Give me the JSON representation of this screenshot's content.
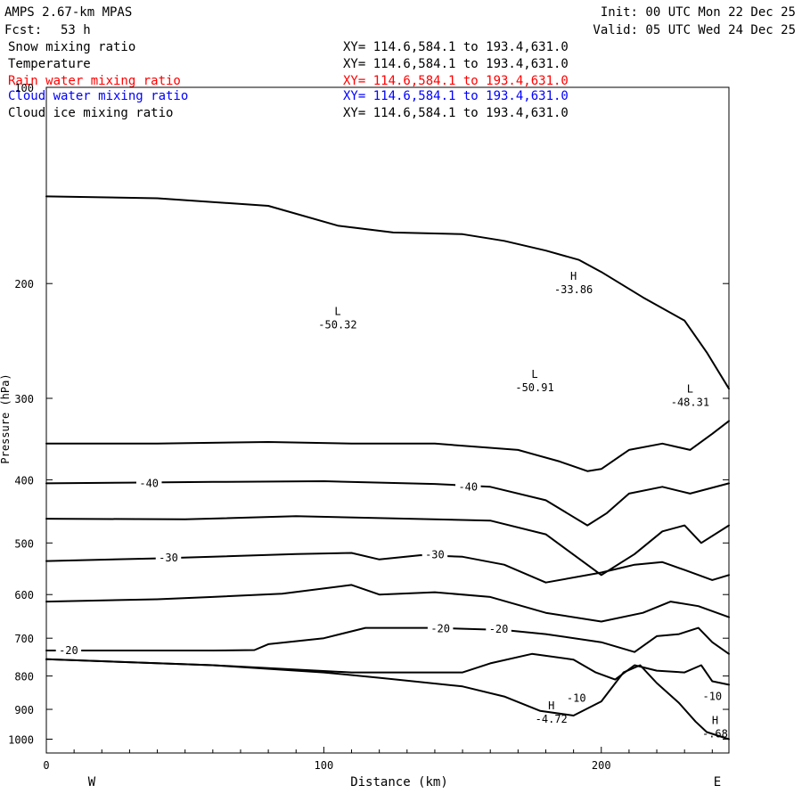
{
  "header": {
    "model": "AMPS 2.67-km MPAS",
    "fcst_label": "Fcst:",
    "fcst_value": "53 h",
    "init": "Init: 00 UTC Mon 22 Dec 25",
    "valid": "Valid: 05 UTC Wed 24 Dec 25"
  },
  "legend": [
    {
      "field": "Snow mixing ratio",
      "xy": "XY= 114.6,584.1 to 193.4,631.0",
      "color": "#000000"
    },
    {
      "field": "Temperature",
      "xy": "XY= 114.6,584.1 to 193.4,631.0",
      "color": "#000000"
    },
    {
      "field": "Rain water mixing ratio",
      "xy": "XY= 114.6,584.1 to 193.4,631.0",
      "color": "#ff0000"
    },
    {
      "field": "Cloud water mixing ratio",
      "xy": "XY= 114.6,584.1 to 193.4,631.0",
      "color": "#0000ff"
    },
    {
      "field": "Cloud ice mixing ratio",
      "xy": "XY= 114.6,584.1 to 193.4,631.0",
      "color": "#000000"
    }
  ],
  "chart_data": {
    "type": "line",
    "title": "",
    "xlabel": "Distance (km)",
    "ylabel": "Pressure (hPa)",
    "xlim": [
      0,
      246
    ],
    "ylim": [
      1050,
      100
    ],
    "y_scale": "log",
    "x_ticks": [
      0,
      100,
      200
    ],
    "y_ticks": [
      100,
      200,
      300,
      400,
      500,
      600,
      700,
      800,
      900,
      1000
    ],
    "x_end_labels": {
      "left": "W",
      "right": "E"
    },
    "contour_interval": 5,
    "series": [
      {
        "values": [
          [
            0,
            147
          ],
          [
            40,
            148
          ],
          [
            80,
            152
          ],
          [
            105,
            163
          ],
          [
            125,
            167
          ],
          [
            150,
            168
          ],
          [
            165,
            172
          ],
          [
            180,
            178
          ],
          [
            192,
            184
          ],
          [
            200,
            192
          ],
          [
            215,
            210
          ],
          [
            230,
            228
          ],
          [
            238,
            255
          ],
          [
            246,
            290
          ]
        ]
      },
      {
        "values": [
          [
            0,
            352
          ],
          [
            40,
            352
          ],
          [
            80,
            350
          ],
          [
            110,
            352
          ],
          [
            140,
            352
          ],
          [
            170,
            360
          ],
          [
            185,
            375
          ],
          [
            195,
            388
          ],
          [
            200,
            385
          ],
          [
            210,
            360
          ],
          [
            222,
            352
          ],
          [
            232,
            360
          ],
          [
            240,
            340
          ],
          [
            246,
            325
          ]
        ]
      },
      {
        "values": [
          [
            0,
            405
          ],
          [
            30,
            404
          ],
          [
            60,
            403
          ],
          [
            100,
            402
          ],
          [
            140,
            406
          ],
          [
            160,
            410
          ],
          [
            180,
            430
          ],
          [
            195,
            470
          ],
          [
            202,
            450
          ],
          [
            210,
            420
          ],
          [
            222,
            410
          ],
          [
            232,
            420
          ],
          [
            246,
            405
          ]
        ]
      },
      {
        "values": [
          [
            0,
            459
          ],
          [
            50,
            460
          ],
          [
            90,
            455
          ],
          [
            120,
            458
          ],
          [
            160,
            462
          ],
          [
            180,
            485
          ],
          [
            200,
            560
          ],
          [
            212,
            520
          ],
          [
            222,
            480
          ],
          [
            230,
            470
          ],
          [
            236,
            500
          ],
          [
            246,
            470
          ]
        ]
      },
      {
        "values": [
          [
            0,
            533
          ],
          [
            40,
            528
          ],
          [
            60,
            525
          ],
          [
            90,
            520
          ],
          [
            110,
            518
          ],
          [
            120,
            530
          ],
          [
            135,
            522
          ],
          [
            150,
            525
          ],
          [
            165,
            540
          ],
          [
            180,
            575
          ],
          [
            200,
            555
          ],
          [
            212,
            540
          ],
          [
            222,
            535
          ],
          [
            230,
            550
          ],
          [
            240,
            570
          ],
          [
            246,
            560
          ]
        ]
      },
      {
        "values": [
          [
            0,
            615
          ],
          [
            40,
            610
          ],
          [
            60,
            605
          ],
          [
            85,
            598
          ],
          [
            110,
            580
          ],
          [
            120,
            600
          ],
          [
            140,
            595
          ],
          [
            160,
            605
          ],
          [
            180,
            640
          ],
          [
            200,
            660
          ],
          [
            215,
            640
          ],
          [
            225,
            615
          ],
          [
            235,
            625
          ],
          [
            246,
            650
          ]
        ]
      },
      {
        "values": [
          [
            0,
            731
          ],
          [
            60,
            731
          ],
          [
            75,
            730
          ],
          [
            80,
            715
          ],
          [
            100,
            700
          ],
          [
            115,
            675
          ],
          [
            140,
            675
          ],
          [
            165,
            680
          ],
          [
            180,
            690
          ],
          [
            200,
            710
          ],
          [
            212,
            735
          ],
          [
            220,
            695
          ],
          [
            228,
            690
          ],
          [
            235,
            675
          ],
          [
            240,
            710
          ],
          [
            246,
            740
          ]
        ]
      },
      {
        "values": [
          [
            0,
            754
          ],
          [
            60,
            770
          ],
          [
            110,
            790
          ],
          [
            150,
            790
          ],
          [
            160,
            765
          ],
          [
            175,
            740
          ],
          [
            190,
            755
          ],
          [
            198,
            790
          ],
          [
            205,
            810
          ],
          [
            212,
            770
          ],
          [
            220,
            785
          ],
          [
            230,
            790
          ],
          [
            236,
            770
          ],
          [
            240,
            815
          ],
          [
            246,
            825
          ]
        ]
      },
      {
        "values": [
          [
            0,
            754
          ],
          [
            60,
            770
          ],
          [
            100,
            790
          ],
          [
            120,
            805
          ],
          [
            150,
            830
          ],
          [
            165,
            860
          ],
          [
            178,
            905
          ],
          [
            190,
            920
          ],
          [
            200,
            875
          ],
          [
            208,
            790
          ],
          [
            214,
            770
          ],
          [
            220,
            820
          ],
          [
            228,
            880
          ],
          [
            234,
            940
          ],
          [
            238,
            975
          ],
          [
            246,
            1000
          ]
        ]
      }
    ],
    "contour_labels": [
      {
        "text": "-40",
        "x": 37,
        "y": 405
      },
      {
        "text": "-40",
        "x": 152,
        "y": 410
      },
      {
        "text": "-30",
        "x": 44,
        "y": 527
      },
      {
        "text": "-30",
        "x": 140,
        "y": 521
      },
      {
        "text": "-20",
        "x": 8,
        "y": 731
      },
      {
        "text": "-20",
        "x": 142,
        "y": 677
      },
      {
        "text": "-20",
        "x": 163,
        "y": 678
      },
      {
        "text": "-10",
        "x": 191,
        "y": 865
      },
      {
        "text": "-10",
        "x": 240,
        "y": 860
      }
    ],
    "extrema": [
      {
        "kind": "L",
        "value": "-50.32",
        "x": 105,
        "y": 232
      },
      {
        "kind": "L",
        "value": "-50.91",
        "x": 176,
        "y": 290
      },
      {
        "kind": "H",
        "value": "-33.86",
        "x": 190,
        "y": 205
      },
      {
        "kind": "L",
        "value": "-48.31",
        "x": 232,
        "y": 305
      },
      {
        "kind": "H",
        "value": "-4.72",
        "x": 182,
        "y": 935
      },
      {
        "kind": "H",
        "value": "-.68",
        "x": 241,
        "y": 985
      }
    ]
  }
}
